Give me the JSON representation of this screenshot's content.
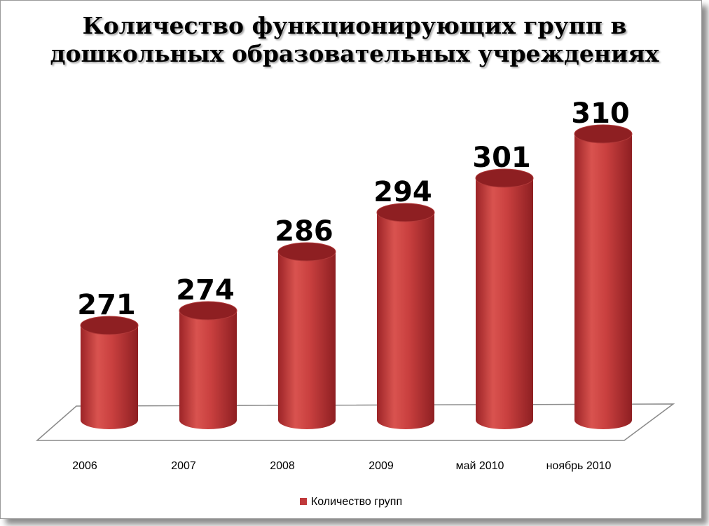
{
  "chart_data": {
    "type": "bar",
    "title": "Количество функционирующих групп  в дошкольных образовательных учреждениях",
    "categories": [
      "2006",
      "2007",
      "2008",
      "2009",
      "май 2010",
      "ноябрь 2010"
    ],
    "series": [
      {
        "name": "Количество групп",
        "values": [
          271,
          274,
          286,
          294,
          301,
          310
        ]
      }
    ],
    "xlabel": "",
    "ylabel": "",
    "grid": false,
    "legend": "bottom",
    "colors": {
      "bar": "#c0393b",
      "bar_dark": "#8e1f22",
      "bar_light": "#e07a78"
    }
  }
}
